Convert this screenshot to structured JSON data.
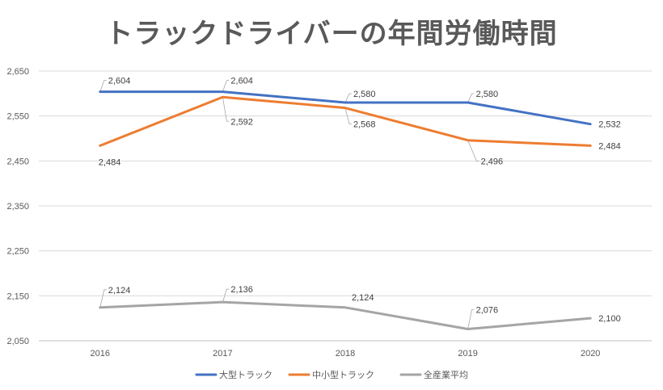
{
  "chart_data": {
    "type": "line",
    "title": "トラックドライバーの年間労働時間",
    "categories": [
      "2016",
      "2017",
      "2018",
      "2019",
      "2020"
    ],
    "ylim": [
      2050,
      2650
    ],
    "yticks": [
      "2,050",
      "2,150",
      "2,250",
      "2,350",
      "2,450",
      "2,550",
      "2,650"
    ],
    "ytick_values": [
      2050,
      2150,
      2250,
      2350,
      2450,
      2550,
      2650
    ],
    "grid": true,
    "legend_position": "bottom",
    "series": [
      {
        "name": "大型トラック",
        "color": "#4472C4",
        "values": [
          2604,
          2604,
          2580,
          2580,
          2532
        ],
        "labels": [
          "2,604",
          "2,604",
          "2,580",
          "2,580",
          "2,532"
        ]
      },
      {
        "name": "中小型トラック",
        "color": "#ED7D31",
        "values": [
          2484,
          2592,
          2568,
          2496,
          2484
        ],
        "labels": [
          "2,484",
          "2,592",
          "2,568",
          "2,496",
          "2,484"
        ]
      },
      {
        "name": "全産業平均",
        "color": "#A5A5A5",
        "values": [
          2124,
          2136,
          2124,
          2076,
          2100
        ],
        "labels": [
          "2,124",
          "2,136",
          "2,124",
          "2,076",
          "2,100"
        ]
      }
    ]
  }
}
